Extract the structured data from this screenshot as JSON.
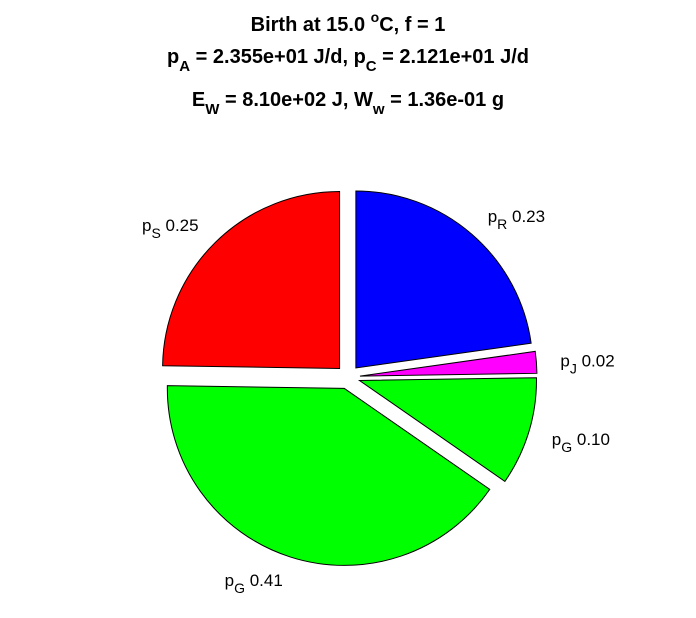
{
  "title": {
    "line1": {
      "prefix": "Birth at 15.0 ",
      "deg_sup": "o",
      "suffix": "C, f = 1"
    },
    "line2": {
      "pA_sym": "p",
      "pA_sub": "A",
      "pA_rest": " = 2.355e+01 J/d, ",
      "pC_sym": "p",
      "pC_sub": "C",
      "pC_rest": " = 2.121e+01 J/d"
    },
    "line3": {
      "EW_sym": "E",
      "EW_sub": "W",
      "EW_rest": " = 8.10e+02 J, ",
      "Ww_sym": "W",
      "Ww_sub": "w",
      "Ww_rest": " = 1.36e-01 g"
    }
  },
  "chart_data": {
    "type": "pie",
    "start": "12 o'clock",
    "direction": "clockwise",
    "slices": [
      {
        "key": "pR",
        "sym": "p",
        "sub": "R",
        "value": 0.23,
        "label_value": "0.23",
        "color": "#0000ff",
        "exploded": true
      },
      {
        "key": "pJ",
        "sym": "p",
        "sub": "J",
        "value": 0.02,
        "label_value": "0.02",
        "color": "#ff00ff",
        "exploded": true
      },
      {
        "key": "pG1",
        "sym": "p",
        "sub": "G",
        "value": 0.1,
        "label_value": "0.10",
        "color": "#00ff00",
        "exploded": true
      },
      {
        "key": "pG2",
        "sym": "p",
        "sub": "G",
        "value": 0.41,
        "label_value": "0.41",
        "color": "#00ff00",
        "exploded": true
      },
      {
        "key": "pS",
        "sym": "p",
        "sub": "S",
        "value": 0.25,
        "label_value": "0.25",
        "color": "#ff0000",
        "exploded": true
      }
    ]
  }
}
